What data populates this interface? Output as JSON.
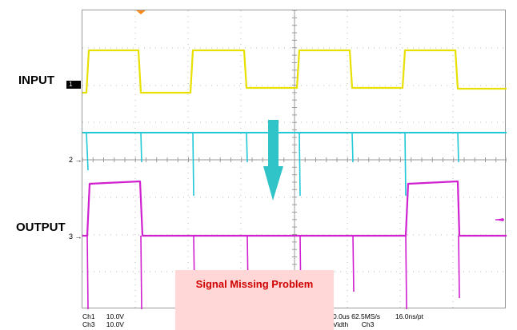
{
  "labels": {
    "input": "INPUT",
    "output": "OUTPUT"
  },
  "channel_markers": {
    "ch1": "1",
    "ch2": "2",
    "ch3": "3"
  },
  "readouts": {
    "left_row1": "Ch1      10.0V",
    "left_row2": "Ch3      10.0V",
    "right_row1": "0.0us 62.5MS/s        16.0ns/pt",
    "right_row2": "Vidth       Ch3"
  },
  "callout": {
    "text": "Signal Missing Problem"
  },
  "colors": {
    "ch1": "#e8e000",
    "ch2": "#20c8d8",
    "ch3": "#d020d0",
    "arrow": "#30c4c8",
    "trigger": "#ff8a1e",
    "callout_bg": "#ffd7d7",
    "callout_text": "#d00000"
  }
}
